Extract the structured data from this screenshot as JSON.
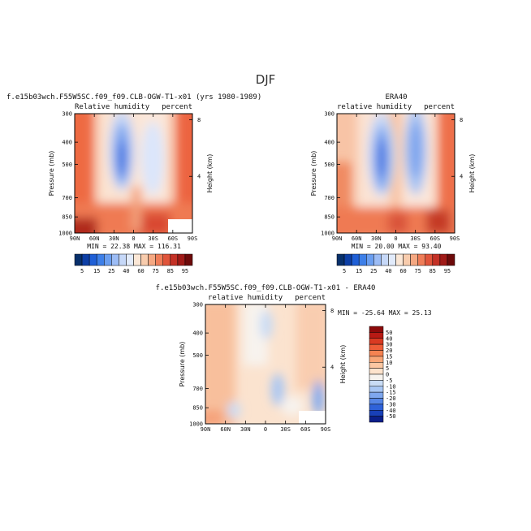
{
  "figure_title": "DJF",
  "chart_data": [
    {
      "type": "heatmap",
      "title": "f.e15b03wch.F55W5SC.f09_f09.CLB-OGW-T1-x01 (yrs 1980-1989)",
      "field_label": "Relative humidity",
      "units": "percent",
      "xlabel": "",
      "ylabel": "Pressure (mb)",
      "ylabel_right": "Height (km)",
      "x_ticks": [
        "90N",
        "60N",
        "30N",
        "0",
        "30S",
        "60S",
        "90S"
      ],
      "y_ticks": [
        "300",
        "400",
        "500",
        "700",
        "850",
        "1000"
      ],
      "height_ticks": [
        "8",
        "4"
      ],
      "ylim": [
        1000,
        300
      ],
      "min": 22.38,
      "max": 116.31,
      "stats_text": "MIN =  22.38   MAX = 116.31",
      "colorbar": {
        "levels": [
          "5",
          "15",
          "25",
          "40",
          "60",
          "75",
          "85",
          "95"
        ],
        "colors": [
          "#08306b",
          "#0d3fa6",
          "#1f5fd6",
          "#3d7fe8",
          "#6a9ef0",
          "#9cbcf5",
          "#c6d8f8",
          "#e2ebfb",
          "#fbe7d6",
          "#f8ccad",
          "#f5a882",
          "#ef7d58",
          "#e0543a",
          "#c43126",
          "#a01a17",
          "#6d0a0a"
        ]
      }
    },
    {
      "type": "heatmap",
      "title": "ERA40",
      "field_label": "relative humidity",
      "units": "percent",
      "xlabel": "",
      "ylabel": "Pressure (mb)",
      "ylabel_right": "Height (km)",
      "x_ticks": [
        "90N",
        "60N",
        "30N",
        "0",
        "30S",
        "60S",
        "90S"
      ],
      "y_ticks": [
        "300",
        "400",
        "500",
        "700",
        "850",
        "1000"
      ],
      "height_ticks": [
        "8",
        "4"
      ],
      "ylim": [
        1000,
        300
      ],
      "min": 20.0,
      "max": 93.4,
      "stats_text": "MIN =  20.00   MAX =  93.40",
      "colorbar": {
        "levels": [
          "5",
          "15",
          "25",
          "40",
          "60",
          "75",
          "85",
          "95"
        ],
        "colors": [
          "#08306b",
          "#0d3fa6",
          "#1f5fd6",
          "#3d7fe8",
          "#6a9ef0",
          "#9cbcf5",
          "#c6d8f8",
          "#e2ebfb",
          "#fbe7d6",
          "#f8ccad",
          "#f5a882",
          "#ef7d58",
          "#e0543a",
          "#c43126",
          "#a01a17",
          "#6d0a0a"
        ]
      }
    },
    {
      "type": "heatmap",
      "title": "f.e15b03wch.F55W5SC.f09_f09.CLB-OGW-T1-x01 - ERA40",
      "field_label": "relative humidity",
      "units": "percent",
      "xlabel": "",
      "ylabel": "Pressure (mb)",
      "ylabel_right": "Height (km)",
      "x_ticks": [
        "90N",
        "60N",
        "30N",
        "0",
        "30S",
        "60S",
        "90S"
      ],
      "y_ticks": [
        "300",
        "400",
        "500",
        "700",
        "850",
        "1000"
      ],
      "height_ticks": [
        "8",
        "4"
      ],
      "ylim": [
        1000,
        300
      ],
      "min": -25.64,
      "max": 25.13,
      "stats_text": "MIN = -25.64   MAX =  25.13",
      "colorbar": {
        "levels": [
          "50",
          "40",
          "30",
          "20",
          "15",
          "10",
          "5",
          "0",
          "-5",
          "-10",
          "-15",
          "-20",
          "-30",
          "-40",
          "-50"
        ],
        "colors": [
          "#8c0a0a",
          "#b81a14",
          "#d93a22",
          "#ee5d38",
          "#f58352",
          "#f8a677",
          "#fbc7a2",
          "#fde3cc",
          "#f7f3ee",
          "#c9dcf5",
          "#a8c6f3",
          "#7fa7ee",
          "#5585e6",
          "#2f62d9",
          "#1840b8",
          "#0b1f8a"
        ]
      }
    }
  ]
}
